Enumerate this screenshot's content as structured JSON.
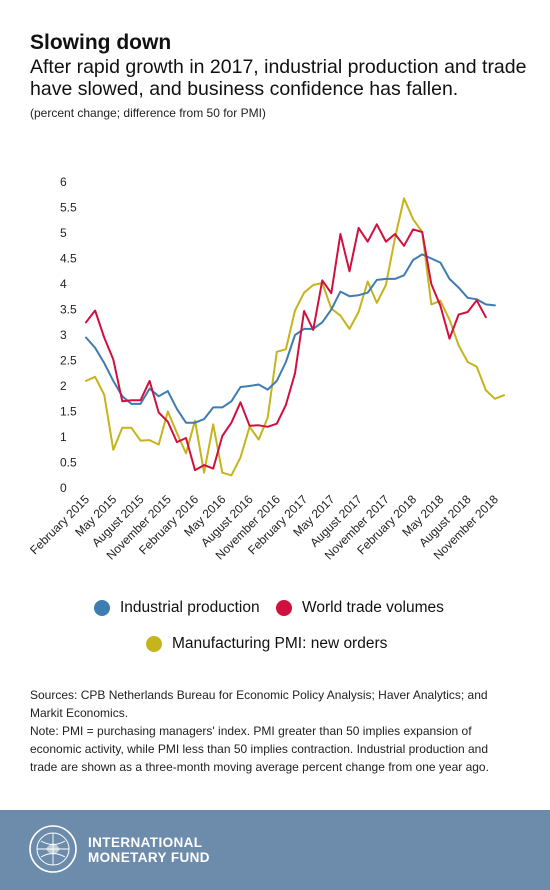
{
  "header": {
    "title": "Slowing down",
    "subtitle": "After rapid growth in 2017, industrial production and trade have slowed, and business confidence has fallen.",
    "units_note": "(percent change; difference from 50 for PMI)"
  },
  "legend": {
    "items": [
      {
        "label": "Industrial production",
        "color": "#3e7cb1"
      },
      {
        "label": "World trade volumes",
        "color": "#d0103e"
      },
      {
        "label": "Manufacturing PMI: new orders",
        "color": "#c5b41c"
      }
    ]
  },
  "sources": {
    "text": "Sources: CPB Netherlands Bureau for Economic Policy Analysis; Haver Analytics; and Markit Economics.",
    "note": "Note: PMI = purchasing managers' index. PMI greater than 50 implies expansion of economic activity, while PMI less than 50 implies contraction. Industrial production and trade are shown as a three-month moving average percent change from one year ago."
  },
  "footer": {
    "org_line1": "INTERNATIONAL",
    "org_line2": "MONETARY FUND"
  },
  "chart_data": {
    "type": "line",
    "title": "Slowing down",
    "ylim": [
      0,
      6
    ],
    "yticks": [
      "0",
      "0.5",
      "1",
      "1.5",
      "2",
      "2.5",
      "3",
      "3.5",
      "4",
      "4.5",
      "5",
      "5.5",
      "6"
    ],
    "grid": false,
    "legend_position": "bottom",
    "x": [
      "2015-02",
      "2015-03",
      "2015-04",
      "2015-05",
      "2015-06",
      "2015-07",
      "2015-08",
      "2015-09",
      "2015-10",
      "2015-11",
      "2015-12",
      "2016-01",
      "2016-02",
      "2016-03",
      "2016-04",
      "2016-05",
      "2016-06",
      "2016-07",
      "2016-08",
      "2016-09",
      "2016-10",
      "2016-11",
      "2016-12",
      "2017-01",
      "2017-02",
      "2017-03",
      "2017-04",
      "2017-05",
      "2017-06",
      "2017-07",
      "2017-08",
      "2017-09",
      "2017-10",
      "2017-11",
      "2017-12",
      "2018-01",
      "2018-02",
      "2018-03",
      "2018-04",
      "2018-05",
      "2018-06",
      "2018-07",
      "2018-08",
      "2018-09",
      "2018-10",
      "2018-11",
      "2018-12"
    ],
    "xtick_labels": [
      {
        "label": "February 2015",
        "x": "2015-02"
      },
      {
        "label": "May 2015",
        "x": "2015-05"
      },
      {
        "label": "August 2015",
        "x": "2015-08"
      },
      {
        "label": "November 2015",
        "x": "2015-11"
      },
      {
        "label": "February 2016",
        "x": "2016-02"
      },
      {
        "label": "May 2016",
        "x": "2016-05"
      },
      {
        "label": "August 2016",
        "x": "2016-08"
      },
      {
        "label": "November 2016",
        "x": "2016-11"
      },
      {
        "label": "February 2017",
        "x": "2017-02"
      },
      {
        "label": "May 2017",
        "x": "2017-05"
      },
      {
        "label": "August 2017",
        "x": "2017-08"
      },
      {
        "label": "November 2017",
        "x": "2017-11"
      },
      {
        "label": "February 2018",
        "x": "2018-02"
      },
      {
        "label": "May 2018",
        "x": "2018-05"
      },
      {
        "label": "August 2018",
        "x": "2018-08"
      },
      {
        "label": "November 2018",
        "x": "2018-11"
      }
    ],
    "series": [
      {
        "name": "Industrial production",
        "color": "#3e7cb1",
        "values": [
          2.95,
          2.75,
          2.45,
          2.1,
          1.8,
          1.65,
          1.65,
          1.95,
          1.8,
          1.9,
          1.55,
          1.28,
          1.28,
          1.35,
          1.58,
          1.58,
          1.7,
          1.98,
          2.0,
          2.03,
          1.93,
          2.1,
          2.47,
          3.0,
          3.12,
          3.12,
          3.25,
          3.5,
          3.85,
          3.76,
          3.78,
          3.83,
          4.08,
          4.1,
          4.1,
          4.17,
          4.47,
          4.58,
          4.5,
          4.42,
          4.1,
          3.93,
          3.73,
          3.7,
          3.6,
          3.58,
          null
        ]
      },
      {
        "name": "World trade volumes",
        "color": "#d0103e",
        "values": [
          3.25,
          3.48,
          2.95,
          2.52,
          1.7,
          1.72,
          1.72,
          2.1,
          1.48,
          1.3,
          0.9,
          0.98,
          0.35,
          0.45,
          0.38,
          1.02,
          1.28,
          1.68,
          1.22,
          1.23,
          1.2,
          1.26,
          1.63,
          2.25,
          3.47,
          3.1,
          4.07,
          3.82,
          4.98,
          4.25,
          5.1,
          4.83,
          5.17,
          4.83,
          4.98,
          4.75,
          5.07,
          5.02,
          4.0,
          3.57,
          2.93,
          3.4,
          3.45,
          3.68,
          3.35,
          null,
          null
        ]
      },
      {
        "name": "Manufacturing PMI: new orders",
        "color": "#c5b41c",
        "values": [
          2.1,
          2.18,
          1.83,
          0.75,
          1.18,
          1.18,
          0.93,
          0.94,
          0.85,
          1.5,
          1.08,
          0.68,
          1.32,
          0.3,
          1.25,
          0.3,
          0.25,
          0.6,
          1.2,
          0.95,
          1.38,
          2.67,
          2.72,
          3.48,
          3.83,
          3.98,
          4.02,
          3.52,
          3.38,
          3.12,
          3.45,
          4.05,
          3.63,
          3.98,
          4.9,
          5.68,
          5.27,
          5.02,
          3.6,
          3.67,
          3.3,
          2.8,
          2.47,
          2.38,
          1.92,
          1.75,
          1.82
        ]
      }
    ]
  }
}
